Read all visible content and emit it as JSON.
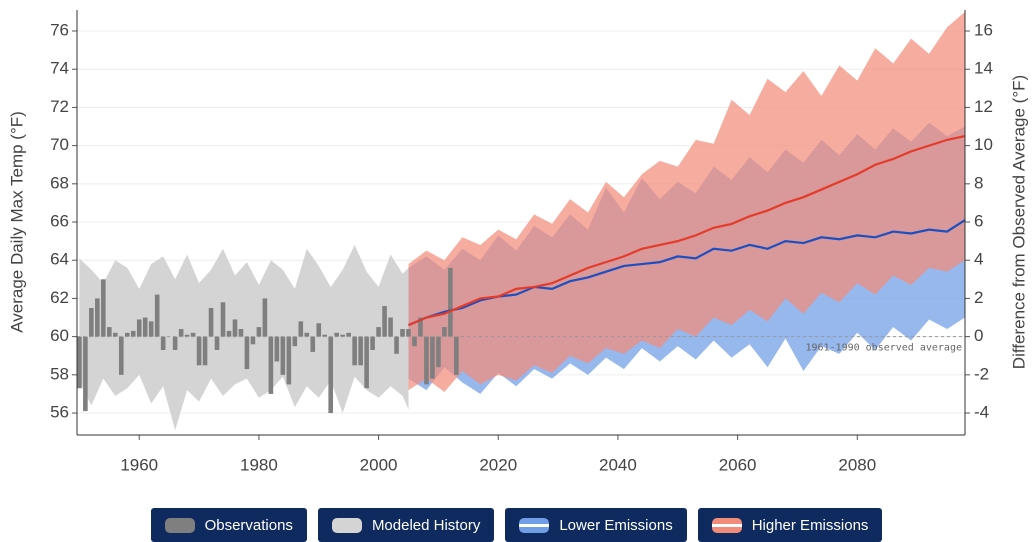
{
  "chart_data": {
    "type": "climate",
    "xlim": [
      1949.6,
      2098
    ],
    "xticks": [
      1960,
      1980,
      2000,
      2020,
      2040,
      2060,
      2080
    ],
    "ylim": [
      54.85,
      77.1
    ],
    "yticks": [
      56,
      58,
      60,
      62,
      64,
      66,
      68,
      70,
      72,
      74,
      76
    ],
    "y2lim": [
      -5.15,
      17.1
    ],
    "y2ticks": [
      -4,
      -2,
      0,
      2,
      4,
      6,
      8,
      10,
      12,
      14,
      16
    ],
    "ylabel": "Average Daily Max Temp (°F)",
    "y2label": "Difference from Observed Average (°F)",
    "grid": true,
    "reference_line": {
      "value": 60,
      "label": "1961-1990 observed average"
    },
    "series": [
      {
        "name": "Observations",
        "type": "bar",
        "color": "#7f7f7f",
        "x": [
          1950,
          1951,
          1952,
          1953,
          1954,
          1955,
          1956,
          1957,
          1958,
          1959,
          1960,
          1961,
          1962,
          1963,
          1964,
          1965,
          1966,
          1967,
          1968,
          1969,
          1970,
          1971,
          1972,
          1973,
          1974,
          1975,
          1976,
          1977,
          1978,
          1979,
          1980,
          1981,
          1982,
          1983,
          1984,
          1985,
          1986,
          1987,
          1988,
          1989,
          1990,
          1991,
          1992,
          1993,
          1994,
          1995,
          1996,
          1997,
          1998,
          1999,
          2000,
          2001,
          2002,
          2003,
          2004,
          2005,
          2006,
          2007,
          2008,
          2009,
          2010,
          2011,
          2012,
          2013
        ],
        "values": [
          57.3,
          56.1,
          61.5,
          62,
          63,
          60.5,
          60.2,
          58,
          60.2,
          60.3,
          60.9,
          61,
          60.8,
          62.2,
          59.3,
          60,
          59.3,
          60.4,
          60.1,
          60.2,
          58.5,
          58.5,
          61.5,
          59.3,
          61.8,
          60.3,
          60.9,
          60.4,
          58.3,
          59.6,
          60.5,
          62,
          57,
          58.7,
          58,
          57.5,
          59.5,
          60.8,
          60.2,
          59.2,
          60.7,
          60.1,
          56,
          60.2,
          60.1,
          60.2,
          58.5,
          58.5,
          57.3,
          59.3,
          60.5,
          61.6,
          61,
          59.1,
          60.4,
          60.4,
          59.5,
          61,
          57.5,
          57.8,
          58.4,
          60.5,
          63.6,
          58
        ]
      },
      {
        "name": "Modeled History",
        "type": "band",
        "color": "#d4d4d4",
        "x": [
          1950,
          1952,
          1954,
          1956,
          1958,
          1960,
          1962,
          1964,
          1966,
          1968,
          1970,
          1972,
          1974,
          1976,
          1978,
          1980,
          1982,
          1984,
          1986,
          1988,
          1990,
          1992,
          1994,
          1996,
          1998,
          2000,
          2002,
          2004,
          2005
        ],
        "high": [
          64.1,
          63.5,
          62.8,
          64,
          63.6,
          62.5,
          63.8,
          64.2,
          63,
          64.3,
          62.8,
          63.5,
          64.6,
          63.2,
          63.9,
          62.7,
          64,
          63.5,
          62.5,
          64.6,
          63.7,
          62.6,
          63.5,
          64.8,
          63.4,
          62.6,
          64.3,
          63.3,
          63.6
        ],
        "low": [
          57.6,
          56.4,
          57.8,
          56.9,
          57.3,
          58,
          56.5,
          57.4,
          55.1,
          57.2,
          56.6,
          57.8,
          56.9,
          57.5,
          57.8,
          56.8,
          57.2,
          57.9,
          56.3,
          57.4,
          56.8,
          57.7,
          56,
          57.9,
          57.2,
          56.8,
          57.4,
          56.9,
          56.2
        ]
      },
      {
        "name": "Lower Emissions",
        "type": "band",
        "color": "#6f9de6",
        "line_color": "#1d4fc0",
        "x": [
          2005,
          2008,
          2011,
          2014,
          2017,
          2020,
          2023,
          2026,
          2029,
          2032,
          2035,
          2038,
          2041,
          2044,
          2047,
          2050,
          2053,
          2056,
          2059,
          2062,
          2065,
          2068,
          2071,
          2074,
          2077,
          2080,
          2083,
          2086,
          2089,
          2092,
          2095,
          2098
        ],
        "high": [
          63.6,
          64.2,
          63.5,
          64.6,
          64,
          65.3,
          64.5,
          65.8,
          65.2,
          66.4,
          65.6,
          67.8,
          66.5,
          68.3,
          67.2,
          68.1,
          67.5,
          68.9,
          68.2,
          69.4,
          68.6,
          69.8,
          69.1,
          70.3,
          69.5,
          70.6,
          69.8,
          70.9,
          70.2,
          71.2,
          70.5,
          71
        ],
        "low": [
          57.8,
          57.2,
          58.4,
          57.6,
          57,
          58.1,
          57.4,
          58.3,
          57.8,
          58.6,
          58,
          58.9,
          58.3,
          59.4,
          58.7,
          59.5,
          58.8,
          59.8,
          58.9,
          59.6,
          58.4,
          59.9,
          58.2,
          59.5,
          59.1,
          60.2,
          59.3,
          60.5,
          59.8,
          60.9,
          60.4,
          61
        ],
        "values": [
          60.6,
          61,
          61.3,
          61.5,
          61.9,
          62.1,
          62.2,
          62.6,
          62.5,
          62.9,
          63.1,
          63.4,
          63.7,
          63.8,
          63.9,
          64.2,
          64.1,
          64.6,
          64.5,
          64.8,
          64.6,
          65,
          64.9,
          65.2,
          65.1,
          65.3,
          65.2,
          65.5,
          65.4,
          65.6,
          65.5,
          66.1
        ]
      },
      {
        "name": "Higher Emissions",
        "type": "band",
        "color": "#f28c7a",
        "line_color": "#e43b2a",
        "x": [
          2005,
          2008,
          2011,
          2014,
          2017,
          2020,
          2023,
          2026,
          2029,
          2032,
          2035,
          2038,
          2041,
          2044,
          2047,
          2050,
          2053,
          2056,
          2059,
          2062,
          2065,
          2068,
          2071,
          2074,
          2077,
          2080,
          2083,
          2086,
          2089,
          2092,
          2095,
          2098
        ],
        "high": [
          63.8,
          64.5,
          64,
          65.2,
          64.8,
          65.6,
          65.1,
          66.4,
          65.9,
          67.2,
          66.5,
          68.1,
          67.3,
          68.5,
          69.2,
          68.9,
          70.3,
          70.1,
          72.4,
          71.6,
          73.5,
          72.8,
          73.9,
          72.6,
          74.2,
          73.4,
          75.1,
          74.3,
          75.6,
          74.8,
          76.2,
          77
        ],
        "low": [
          57.2,
          57.8,
          57.1,
          58.2,
          57.5,
          58,
          57.7,
          58.5,
          58.1,
          59,
          58.6,
          59.4,
          59.1,
          59.8,
          59.4,
          60.4,
          60,
          61,
          60.6,
          61.4,
          60.8,
          62,
          61.2,
          62.3,
          61.8,
          62.8,
          62.2,
          63.2,
          62.7,
          63.6,
          63.4,
          64
        ],
        "values": [
          60.6,
          61,
          61.2,
          61.6,
          62,
          62.1,
          62.5,
          62.6,
          62.8,
          63.2,
          63.6,
          63.9,
          64.2,
          64.6,
          64.8,
          65,
          65.3,
          65.7,
          65.9,
          66.3,
          66.6,
          67,
          67.3,
          67.7,
          68.1,
          68.5,
          69,
          69.3,
          69.7,
          70,
          70.3,
          70.5
        ]
      }
    ]
  }
}
